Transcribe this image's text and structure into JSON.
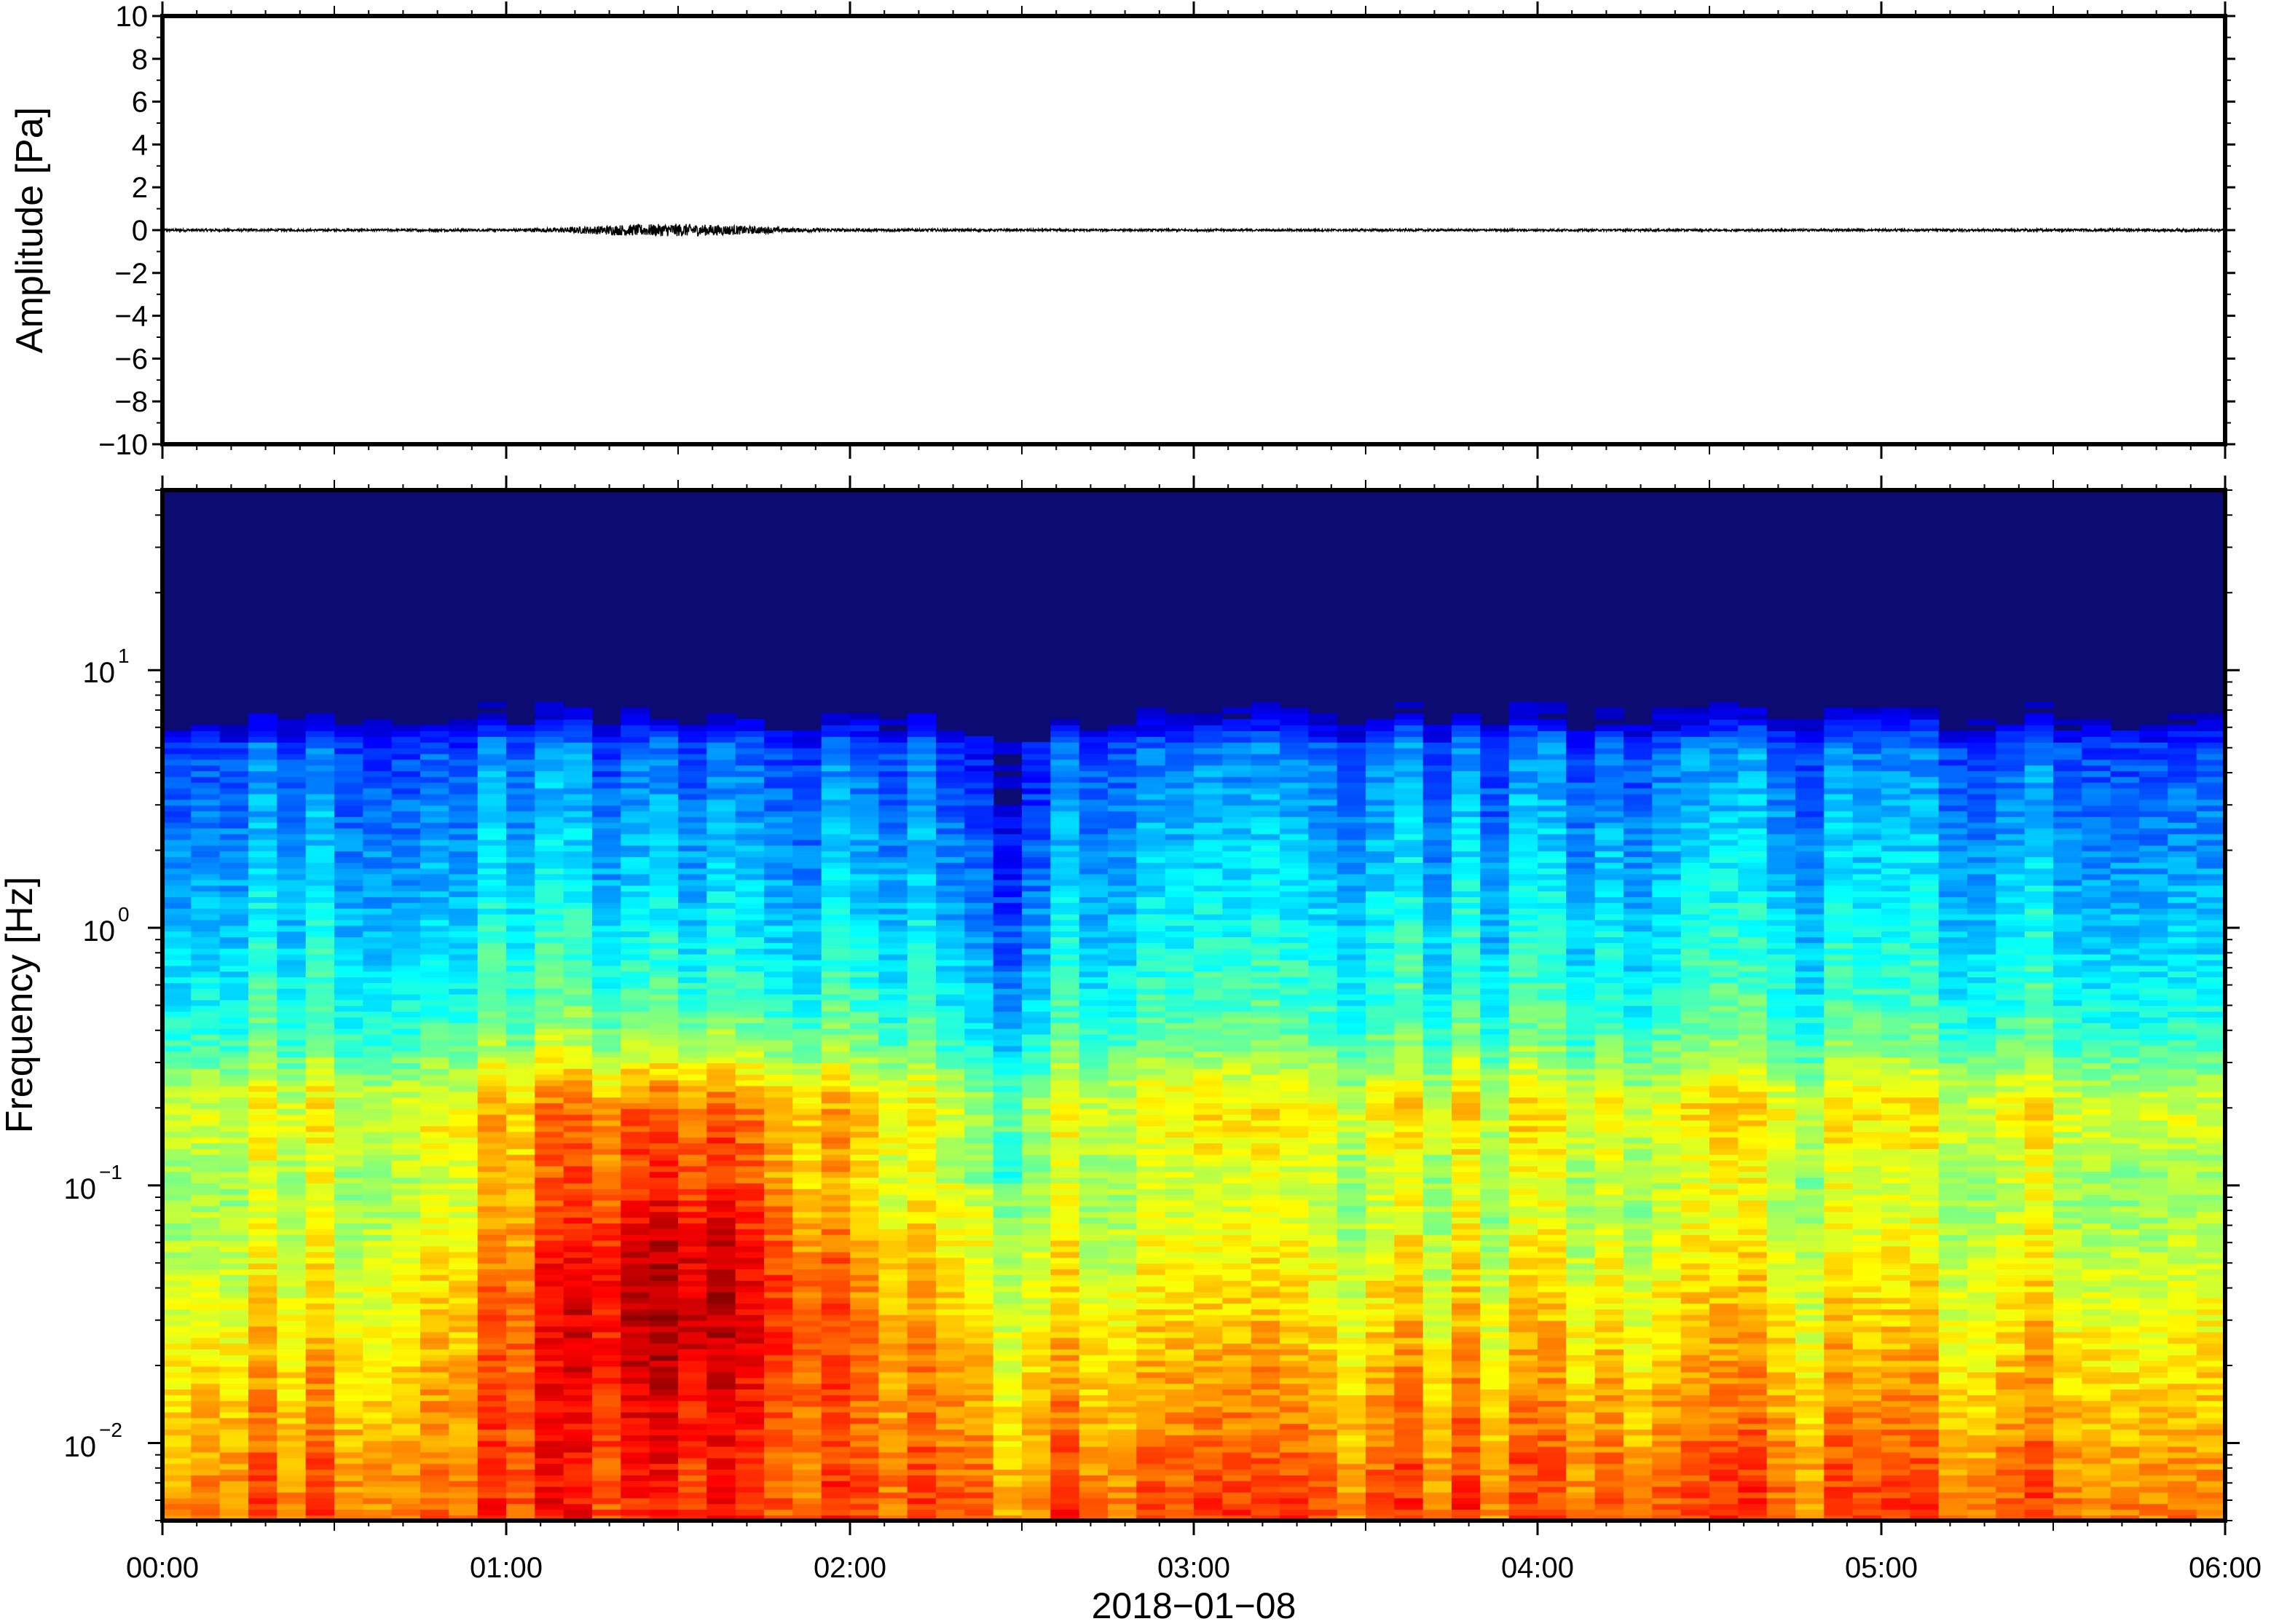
{
  "chart_data": [
    {
      "type": "line",
      "panel": "waveform",
      "ylabel": "Amplitude [Pa]",
      "ylim": [
        -10,
        10
      ],
      "yticks": [
        "10",
        "8",
        "6",
        "4",
        "2",
        "0",
        "−2",
        "−4",
        "−6",
        "−8",
        "−10"
      ],
      "ytick_values": [
        10,
        8,
        6,
        4,
        2,
        0,
        -2,
        -4,
        -6,
        -8,
        -10
      ],
      "xlim": [
        "00:00",
        "06:00"
      ],
      "series": [
        {
          "x_minutes": [
            0,
            30,
            60,
            70,
            80,
            90,
            100,
            110,
            120,
            150,
            180,
            210,
            240,
            270,
            300,
            330,
            360
          ],
          "envelope": [
            0.06,
            0.05,
            0.06,
            0.12,
            0.25,
            0.3,
            0.22,
            0.1,
            0.07,
            0.05,
            0.05,
            0.05,
            0.05,
            0.05,
            0.05,
            0.06,
            0.06
          ]
        }
      ],
      "grid": false
    },
    {
      "type": "heatmap",
      "panel": "spectrogram",
      "ylabel": "Frequency [Hz]",
      "xlabel": "2018−01−08",
      "yscale": "log",
      "ylim": [
        0.005,
        50
      ],
      "yticks": [
        {
          "base": "10",
          "exp": "1",
          "value": 10
        },
        {
          "base": "10",
          "exp": "0",
          "value": 1
        },
        {
          "base": "10",
          "exp": "−1",
          "value": 0.1
        },
        {
          "base": "10",
          "exp": "−2",
          "value": 0.01
        }
      ],
      "xticks": [
        "00:00",
        "01:00",
        "02:00",
        "03:00",
        "04:00",
        "05:00",
        "06:00"
      ],
      "xtick_minutes": [
        0,
        60,
        120,
        180,
        240,
        300,
        360
      ],
      "colormap": "jet",
      "background_color": "#0b0b72",
      "grid": false
    }
  ]
}
